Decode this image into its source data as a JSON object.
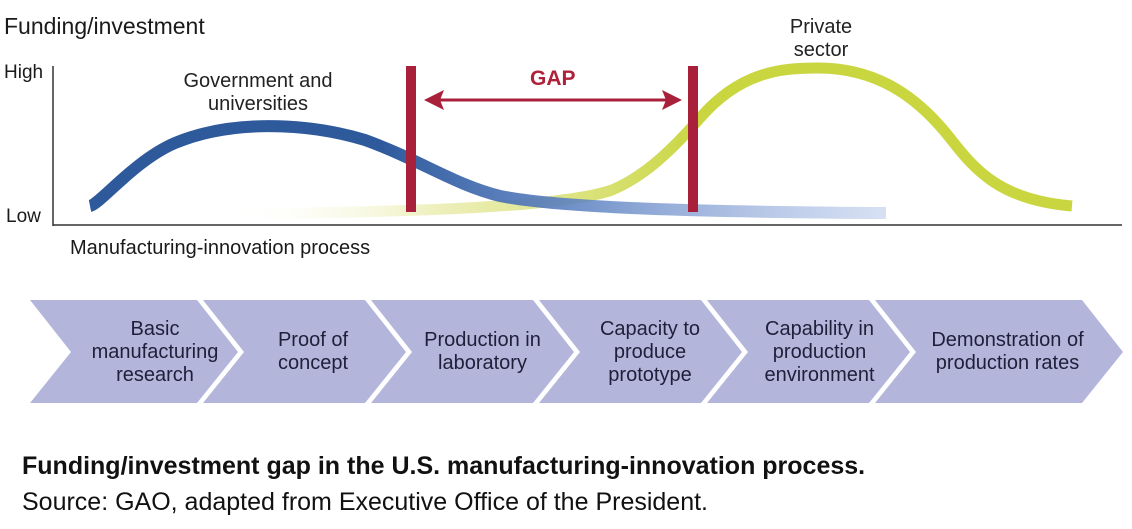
{
  "title": "Funding/investment",
  "axis": {
    "y_high": "High",
    "y_low": "Low",
    "x_label": "Manufacturing-innovation process"
  },
  "series": {
    "government": {
      "label": "Government and universities",
      "color": "#2e5a9c"
    },
    "private": {
      "label": "Private sector",
      "color": "#c9d640"
    }
  },
  "gap": {
    "label": "GAP",
    "color": "#a8203a"
  },
  "stages": [
    "Basic manufacturing research",
    "Proof of concept",
    "Production in laboratory",
    "Capacity to produce prototype",
    "Capability in production environment",
    "Demonstration of production rates"
  ],
  "caption": {
    "title": "Funding/investment gap in the U.S. manufacturing-innovation process.",
    "source": "Source: GAO, adapted from Executive Office of the President."
  },
  "colors": {
    "stage_fill": "#b3b6da",
    "axis": "#333333"
  }
}
